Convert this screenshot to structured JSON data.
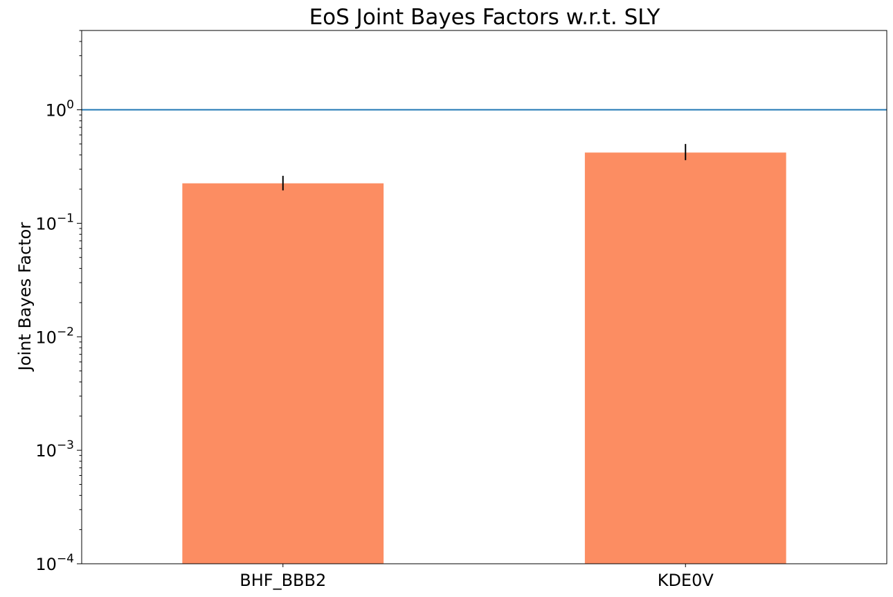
{
  "chart_data": {
    "type": "bar",
    "title": "EoS Joint Bayes Factors w.r.t. SLY",
    "xlabel": "",
    "ylabel": "Joint Bayes Factor",
    "yscale": "log",
    "ylim": [
      0.0001,
      5
    ],
    "categories": [
      "BHF_BBB2",
      "KDE0V"
    ],
    "values": [
      0.225,
      0.42
    ],
    "error_low": [
      0.195,
      0.36
    ],
    "error_high": [
      0.262,
      0.5
    ],
    "reference_line": 1,
    "ytick_base": "10",
    "ytick_exponents": [
      "−4",
      "−3",
      "−2",
      "−1",
      "0"
    ],
    "ytick_values": [
      0.0001,
      0.001,
      0.01,
      0.1,
      1
    ],
    "grid": false,
    "colors": {
      "bar": "#fc8d62",
      "reference_line": "#1f77b4",
      "error_bar": "#000000",
      "axes": "#000000"
    }
  }
}
